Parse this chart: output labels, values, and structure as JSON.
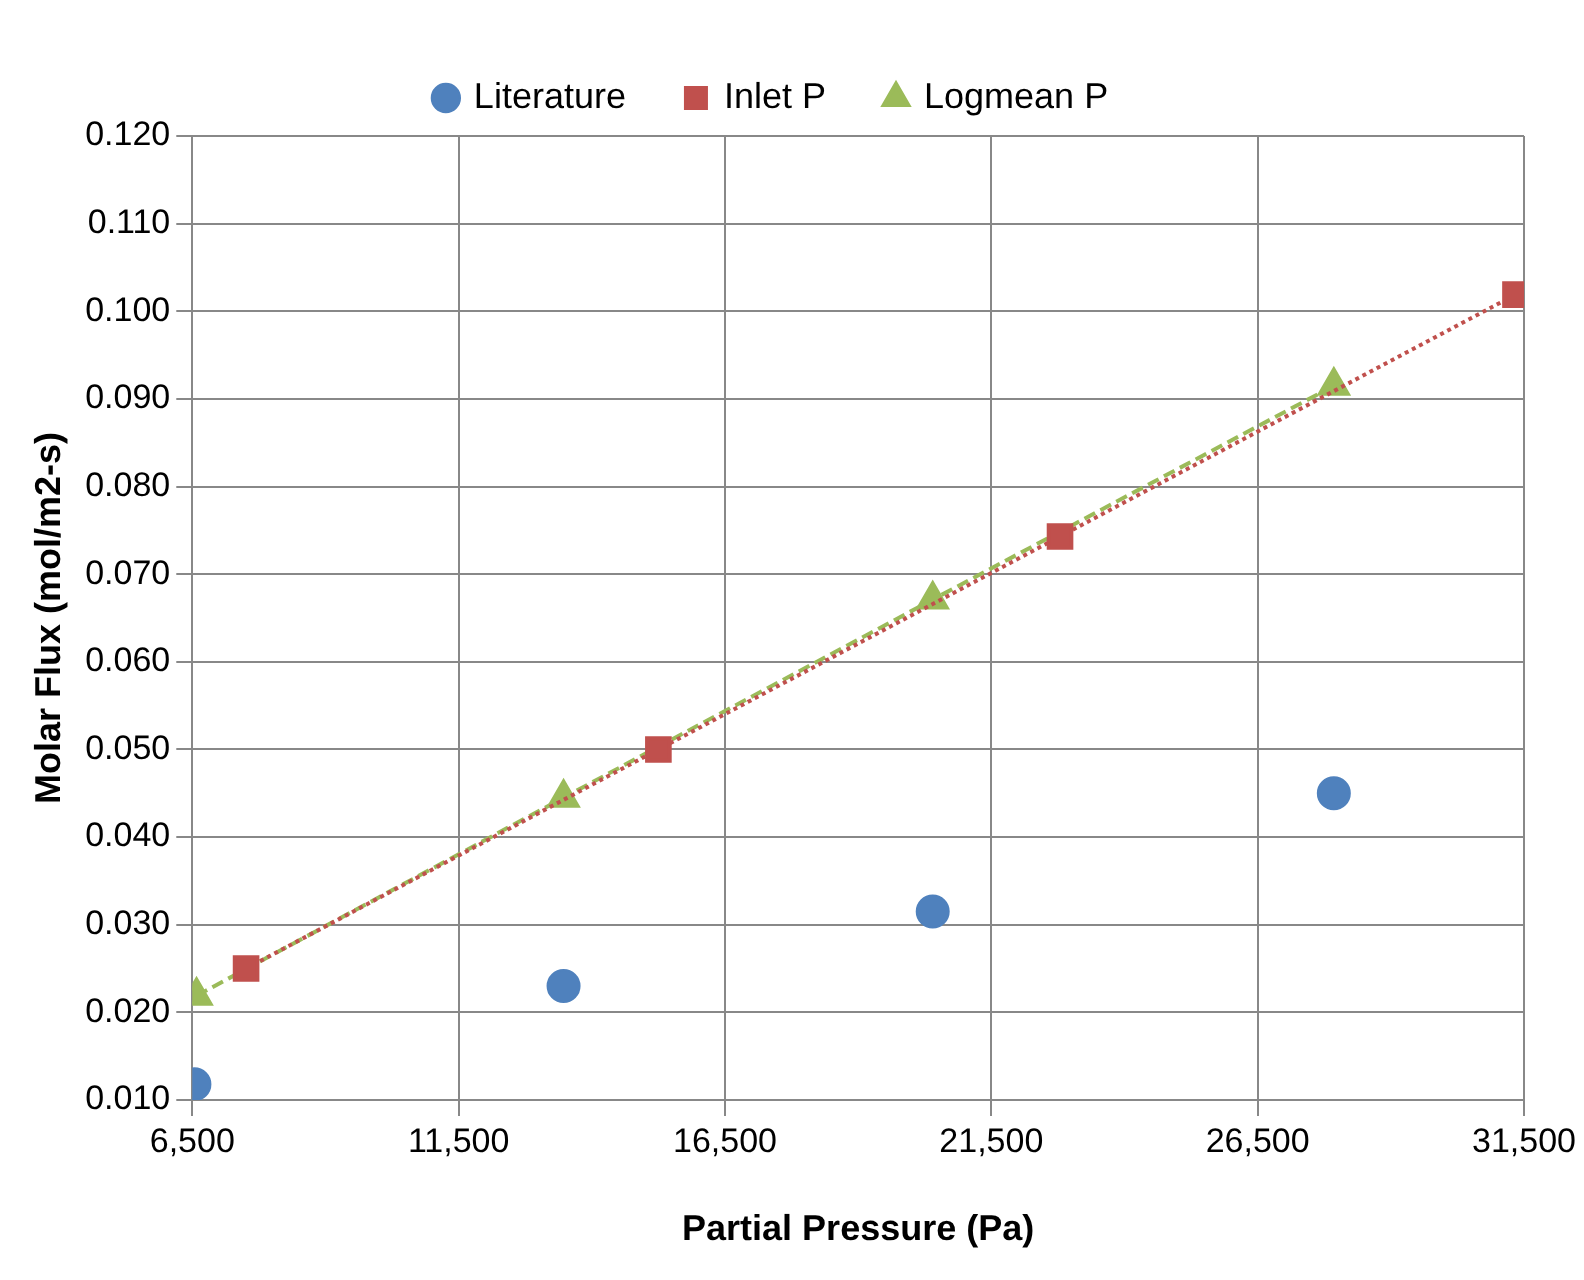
{
  "chart_data": {
    "type": "line",
    "xlabel": "Partial Pressure (Pa)",
    "ylabel": "Molar Flux (mol/m2-s)",
    "xlim": [
      6500,
      31500
    ],
    "xticks": [
      {
        "value": 6500,
        "label": "6,500"
      },
      {
        "value": 11500,
        "label": "11,500"
      },
      {
        "value": 16500,
        "label": "16,500"
      },
      {
        "value": 21500,
        "label": "21,500"
      },
      {
        "value": 26500,
        "label": "26,500"
      },
      {
        "value": 31500,
        "label": "31,500"
      }
    ],
    "ylim": [
      0.01,
      0.12
    ],
    "yticks": [
      {
        "value": 0.01,
        "label": "0.010"
      },
      {
        "value": 0.02,
        "label": "0.020"
      },
      {
        "value": 0.03,
        "label": "0.030"
      },
      {
        "value": 0.04,
        "label": "0.040"
      },
      {
        "value": 0.05,
        "label": "0.050"
      },
      {
        "value": 0.06,
        "label": "0.060"
      },
      {
        "value": 0.07,
        "label": "0.070"
      },
      {
        "value": 0.08,
        "label": "0.080"
      },
      {
        "value": 0.09,
        "label": "0.090"
      },
      {
        "value": 0.1,
        "label": "0.100"
      },
      {
        "value": 0.11,
        "label": "0.110"
      },
      {
        "value": 0.12,
        "label": "0.120"
      }
    ],
    "grid": true,
    "legend": "top",
    "series": [
      {
        "name": "Literature",
        "type": "scatter",
        "color": "#4f81bd",
        "marker": "circle",
        "x": [
          6540,
          13470,
          20400,
          27930
        ],
        "values": [
          0.0118,
          0.023,
          0.0315,
          0.045
        ]
      },
      {
        "name": "Inlet P",
        "color": "#c0504d",
        "marker": "square",
        "line_style": "dotted",
        "x": [
          7510,
          15250,
          22790,
          31340
        ],
        "values": [
          0.025,
          0.05,
          0.0743,
          0.1019
        ]
      },
      {
        "name": "Logmean P",
        "color": "#9bbb59",
        "marker": "triangle",
        "line_style": "dashed",
        "x": [
          6580,
          13470,
          20400,
          27930
        ],
        "values": [
          0.0219,
          0.0445,
          0.0671,
          0.0915
        ]
      }
    ]
  }
}
